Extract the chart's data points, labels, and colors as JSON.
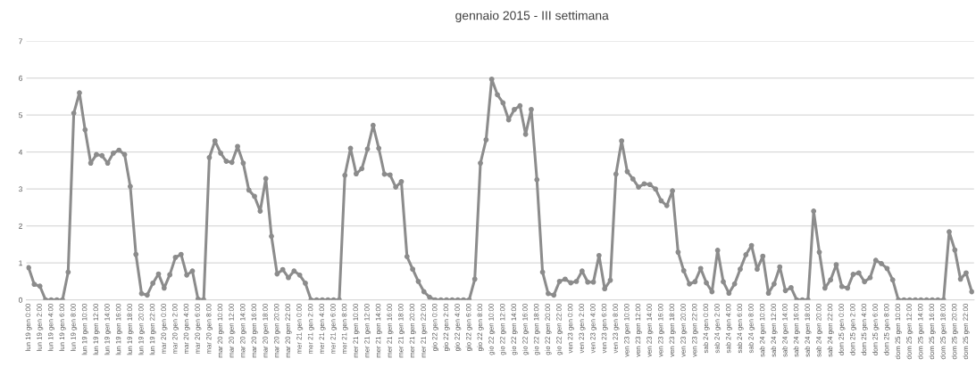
{
  "chart_data": {
    "type": "line",
    "title": "gennaio 2015 - III settimana",
    "categories": [
      "lun 19 gen 0:00",
      null,
      "lun 19 gen 2:00",
      null,
      "lun 19 gen 4:00",
      null,
      "lun 19 gen 6:00",
      null,
      "lun 19 gen 8:00",
      null,
      "lun 19 gen 10:00",
      null,
      "lun 19 gen 12:00",
      null,
      "lun 19 gen 14:00",
      null,
      "lun 19 gen 16:00",
      null,
      "lun 19 gen 18:00",
      null,
      "lun 19 gen 20:00",
      null,
      "lun 19 gen 22:00",
      null,
      "mar 20 gen 0:00",
      null,
      "mar 20 gen 2:00",
      null,
      "mar 20 gen 4:00",
      null,
      "mar 20 gen 6:00",
      null,
      "mar 20 gen 8:00",
      null,
      "mar 20 gen 10:00",
      null,
      "mar 20 gen 12:00",
      null,
      "mar 20 gen 14:00",
      null,
      "mar 20 gen 16:00",
      null,
      "mar 20 gen 18:00",
      null,
      "mar 20 gen 20:00",
      null,
      "mar 20 gen 22:00",
      null,
      "mer 21 gen 0:00",
      null,
      "mer 21 gen 2:00",
      null,
      "mer 21 gen 4:00",
      null,
      "mer 21 gen 6:00",
      null,
      "mer 21 gen 8:00",
      null,
      "mer 21 gen 10:00",
      null,
      "mer 21 gen 12:00",
      null,
      "mer 21 gen 14:00",
      null,
      "mer 21 gen 16:00",
      null,
      "mer 21 gen 18:00",
      null,
      "mer 21 gen 20:00",
      null,
      "mer 21 gen 22:00",
      null,
      "gio 22 gen 0:00",
      null,
      "gio 22 gen 2:00",
      null,
      "gio 22 gen 4:00",
      null,
      "gio 22 gen 6:00",
      null,
      "gio 22 gen 8:00",
      null,
      "gio 22 gen 10:00",
      null,
      "gio 22 gen 12:00",
      null,
      "gio 22 gen 14:00",
      null,
      "gio 22 gen 16:00",
      null,
      "gio 22 gen 18:00",
      null,
      "gio 22 gen 20:00",
      null,
      "gio 22 gen 22:00",
      null,
      "ven 23 gen 0:00",
      null,
      "ven 23 gen 2:00",
      null,
      "ven 23 gen 4:00",
      null,
      "ven 23 gen 6:00",
      null,
      "ven 23 gen 8:00",
      null,
      "ven 23 gen 10:00",
      null,
      "ven 23 gen 12:00",
      null,
      "ven 23 gen 14:00",
      null,
      "ven 23 gen 16:00",
      null,
      "ven 23 gen 18:00",
      null,
      "ven 23 gen 20:00",
      null,
      "ven 23 gen 22:00",
      null,
      "sab 24 gen 0:00",
      null,
      "sab 24 gen 2:00",
      null,
      "sab 24 gen 4:00",
      null,
      "sab 24 gen 6:00",
      null,
      "sab 24 gen 8:00",
      null,
      "sab 24 gen 10:00",
      null,
      "sab 24 gen 12:00",
      null,
      "sab 24 gen 14:00",
      null,
      "sab 24 gen 16:00",
      null,
      "sab 24 gen 18:00",
      null,
      "sab 24 gen 20:00",
      null,
      "sab 24 gen 22:00",
      null,
      "dom 25 gen 0:00",
      null,
      "dom 25 gen 2:00",
      null,
      "dom 25 gen 4:00",
      null,
      "dom 25 gen 6:00",
      null,
      "dom 25 gen 8:00",
      null,
      "dom 25 gen 10:00",
      null,
      "dom 25 gen 12:00",
      null,
      "dom 25 gen 14:00",
      null,
      "dom 25 gen 16:00",
      null,
      "dom 25 gen 18:00",
      null,
      "dom 25 gen 20:00",
      null,
      "dom 25 gen 22:00",
      null
    ],
    "series": [
      {
        "color": "#8c8c8c",
        "values": [
          0.87,
          0.42,
          0.37,
          0,
          0,
          0,
          0,
          0.75,
          5.05,
          5.6,
          4.6,
          3.7,
          3.93,
          3.9,
          3.7,
          3.97,
          4.05,
          3.93,
          3.07,
          1.23,
          0.17,
          0.13,
          0.45,
          0.7,
          0.32,
          0.68,
          1.15,
          1.23,
          0.67,
          0.78,
          0.02,
          0,
          3.85,
          4.3,
          3.97,
          3.75,
          3.72,
          4.15,
          3.7,
          2.97,
          2.8,
          2.4,
          3.28,
          1.72,
          0.7,
          0.82,
          0.6,
          0.78,
          0.67,
          0.45,
          0,
          0,
          0,
          0,
          0,
          0,
          3.37,
          4.1,
          3.41,
          3.55,
          4.08,
          4.72,
          4.1,
          3.4,
          3.38,
          3.05,
          3.2,
          1.17,
          0.83,
          0.5,
          0.22,
          0.07,
          0,
          0,
          0,
          0,
          0,
          0,
          0,
          0.56,
          3.7,
          4.33,
          5.97,
          5.55,
          5.33,
          4.87,
          5.15,
          5.25,
          4.48,
          5.15,
          3.25,
          0.75,
          0.17,
          0.13,
          0.5,
          0.56,
          0.46,
          0.5,
          0.78,
          0.48,
          0.48,
          1.2,
          0.3,
          0.53,
          3.4,
          4.3,
          3.47,
          3.27,
          3.05,
          3.14,
          3.12,
          3.0,
          2.68,
          2.55,
          2.95,
          1.29,
          0.79,
          0.43,
          0.49,
          0.85,
          0.46,
          0.22,
          1.34,
          0.49,
          0.18,
          0.43,
          0.83,
          1.22,
          1.47,
          0.83,
          1.18,
          0.18,
          0.43,
          0.89,
          0.25,
          0.33,
          0,
          0,
          0,
          2.4,
          1.29,
          0.32,
          0.54,
          0.95,
          0.36,
          0.32,
          0.69,
          0.73,
          0.49,
          0.6,
          1.07,
          0.98,
          0.85,
          0.54,
          0,
          0,
          0,
          0,
          0,
          0,
          0,
          0,
          0,
          1.84,
          1.35,
          0.56,
          0.73,
          0.22
        ]
      }
    ],
    "ylim": [
      0,
      7
    ],
    "yticks": [
      0,
      1,
      2,
      3,
      4,
      5,
      6,
      7
    ],
    "grid": "y",
    "marker": "circle",
    "line_style": "solid"
  }
}
